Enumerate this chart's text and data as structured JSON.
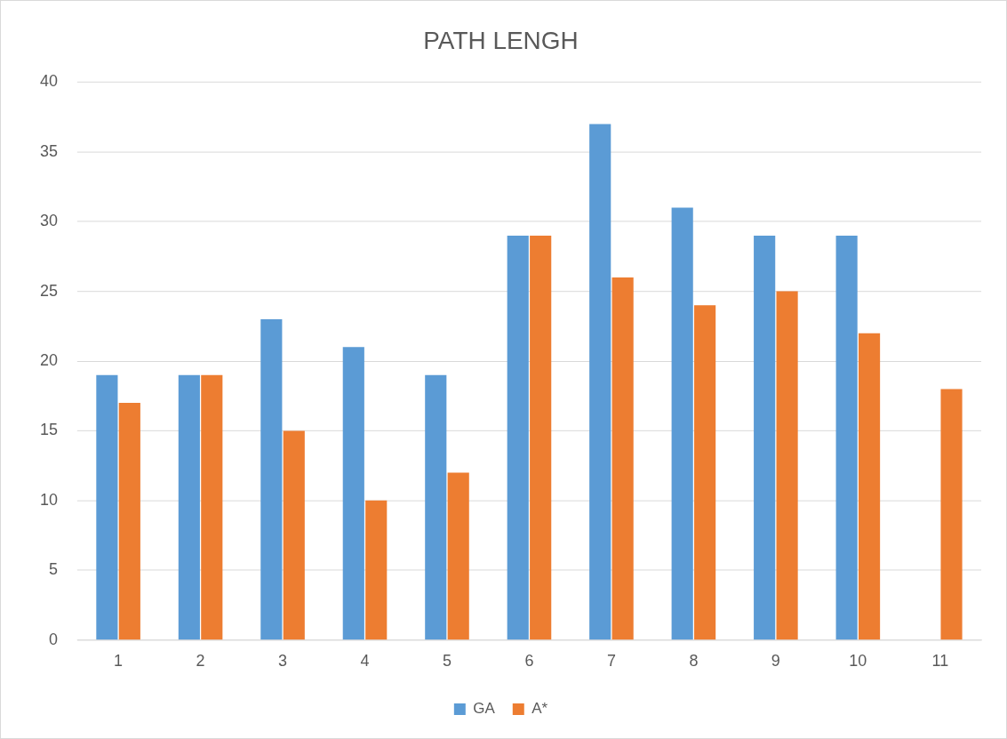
{
  "chart_data": {
    "type": "bar",
    "title": "PATH LENGH",
    "categories": [
      "1",
      "2",
      "3",
      "4",
      "5",
      "6",
      "7",
      "8",
      "9",
      "10",
      "11"
    ],
    "series": [
      {
        "name": "GA",
        "color": "#5b9bd5",
        "values": [
          19,
          19,
          23,
          21,
          19,
          29,
          37,
          31,
          29,
          29,
          null
        ]
      },
      {
        "name": "A*",
        "color": "#ed7d31",
        "values": [
          17,
          19,
          15,
          10,
          12,
          29,
          26,
          24,
          25,
          22,
          18
        ]
      }
    ],
    "ylim": [
      0,
      40
    ],
    "yticks": [
      0,
      5,
      10,
      15,
      20,
      25,
      30,
      35,
      40
    ],
    "grid": "y",
    "legend": "bottom"
  }
}
